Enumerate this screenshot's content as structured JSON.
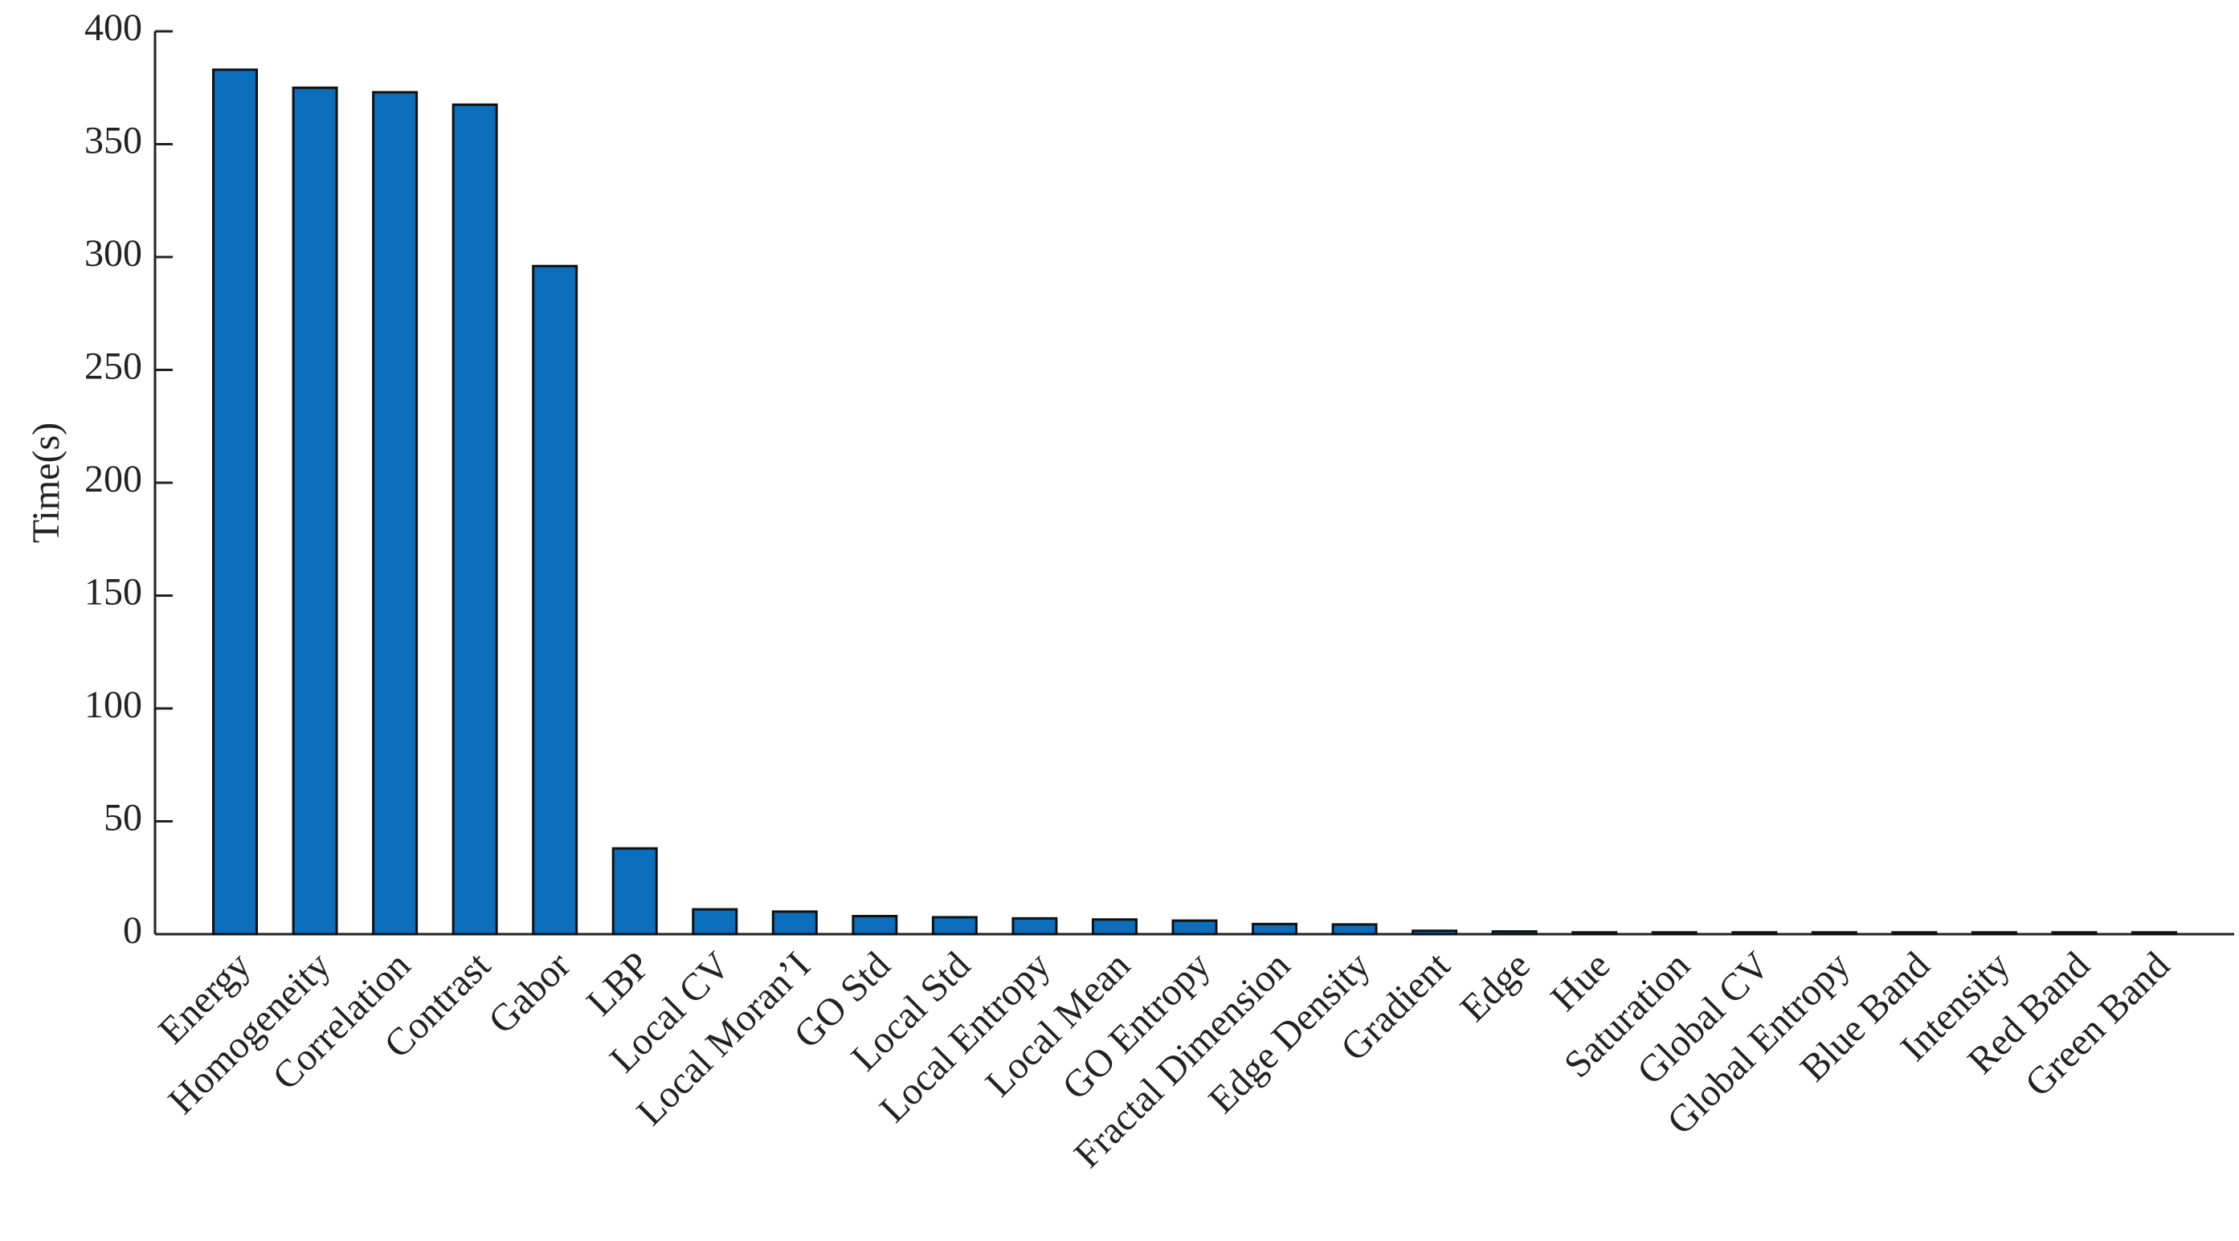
{
  "chart_data": {
    "type": "bar",
    "ylabel": "Time(s)",
    "categories": [
      "Energy",
      "Homogeneity",
      "Correlation",
      "Contrast",
      "Gabor",
      "LBP",
      "Local CV",
      "Local Moran’I",
      "GO Std",
      "Local Std",
      "Local Entropy",
      "Local Mean",
      "GO Entropy",
      "Fractal Dimension",
      "Edge Density",
      "Gradient",
      "Edge",
      "Hue",
      "Saturation",
      "Global CV",
      "Global Entropy",
      "Blue Band",
      "Intensity",
      "Red Band",
      "Green Band"
    ],
    "values": [
      383,
      375,
      373,
      367.5,
      296,
      38,
      11,
      10,
      8,
      7.5,
      7,
      6.5,
      6,
      4.5,
      4.3,
      1.5,
      1.2,
      0.8,
      0.8,
      0.8,
      0.8,
      0.8,
      0.8,
      0.8,
      0.8
    ],
    "color": "#0a6ebd",
    "ylim": [
      0,
      400
    ],
    "yticks": [
      0,
      50,
      100,
      150,
      200,
      250,
      300,
      350,
      400
    ]
  }
}
